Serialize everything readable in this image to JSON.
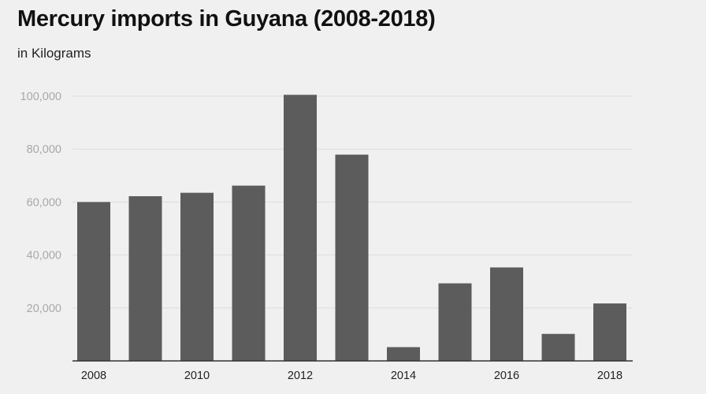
{
  "header": {
    "title": "Mercury imports in Guyana (2008-2018)",
    "subtitle": "in Kilograms"
  },
  "colors": {
    "background": "#f0f0f0",
    "bar": "#5c5c5c",
    "gridline": "#dcdcdc",
    "baseline": "#333333"
  },
  "chart_data": {
    "type": "bar",
    "title": "Mercury imports in Guyana (2008-2018)",
    "subtitle": "in Kilograms",
    "xlabel": "",
    "ylabel": "",
    "categories": [
      "2008",
      "2009",
      "2010",
      "2011",
      "2012",
      "2013",
      "2014",
      "2015",
      "2016",
      "2017",
      "2018"
    ],
    "values": [
      60000,
      62200,
      63500,
      66200,
      100500,
      77900,
      5200,
      29300,
      35300,
      10200,
      21700
    ],
    "x_tick_labels": [
      "2008",
      "2010",
      "2012",
      "2014",
      "2016",
      "2018"
    ],
    "y_ticks": [
      20000,
      40000,
      60000,
      80000,
      100000
    ],
    "y_tick_labels": [
      "20,000",
      "40,000",
      "60,000",
      "80,000",
      "100,000"
    ],
    "ylim": [
      0,
      100000
    ],
    "grid": true,
    "legend": "none"
  }
}
